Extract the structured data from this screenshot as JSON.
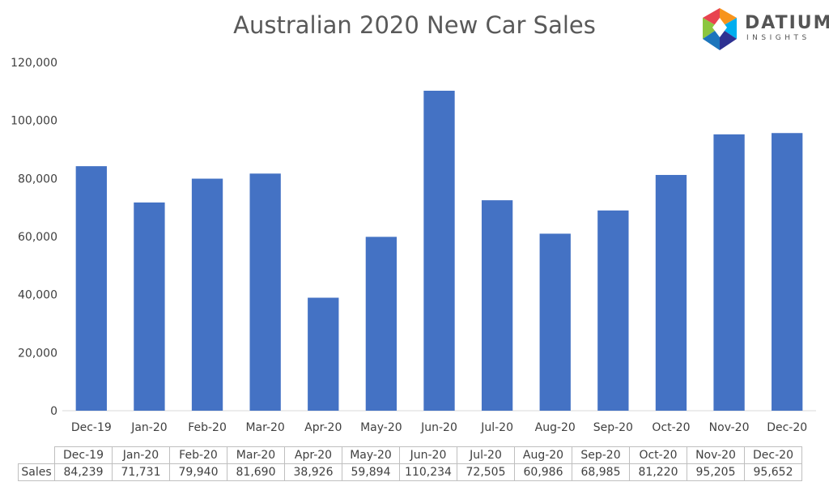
{
  "chart_data": {
    "type": "bar",
    "title": "Australian 2020 New Car Sales",
    "categories": [
      "Dec-19",
      "Jan-20",
      "Feb-20",
      "Mar-20",
      "Apr-20",
      "May-20",
      "Jun-20",
      "Jul-20",
      "Aug-20",
      "Sep-20",
      "Oct-20",
      "Nov-20",
      "Dec-20"
    ],
    "series": [
      {
        "name": "Sales",
        "values": [
          84239,
          71731,
          79940,
          81690,
          38926,
          59894,
          110234,
          72505,
          60986,
          68985,
          81220,
          95205,
          95652
        ],
        "color": "#4472C4"
      }
    ],
    "y_ticks": [
      "0",
      "20,000",
      "40,000",
      "60,000",
      "80,000",
      "100,000",
      "120,000"
    ],
    "ylim": [
      0,
      120000
    ],
    "grid": false
  },
  "table": {
    "row_label": "Sales",
    "categories": [
      "Dec-19",
      "Jan-20",
      "Feb-20",
      "Mar-20",
      "Apr-20",
      "May-20",
      "Jun-20",
      "Jul-20",
      "Aug-20",
      "Sep-20",
      "Oct-20",
      "Nov-20",
      "Dec-20"
    ],
    "values": [
      "84,239",
      "71,731",
      "79,940",
      "81,690",
      "38,926",
      "59,894",
      "110,234",
      "72,505",
      "60,986",
      "68,985",
      "81,220",
      "95,205",
      "95,652"
    ]
  },
  "logo": {
    "word": "DATIUM",
    "sub": "INSIGHTS"
  }
}
